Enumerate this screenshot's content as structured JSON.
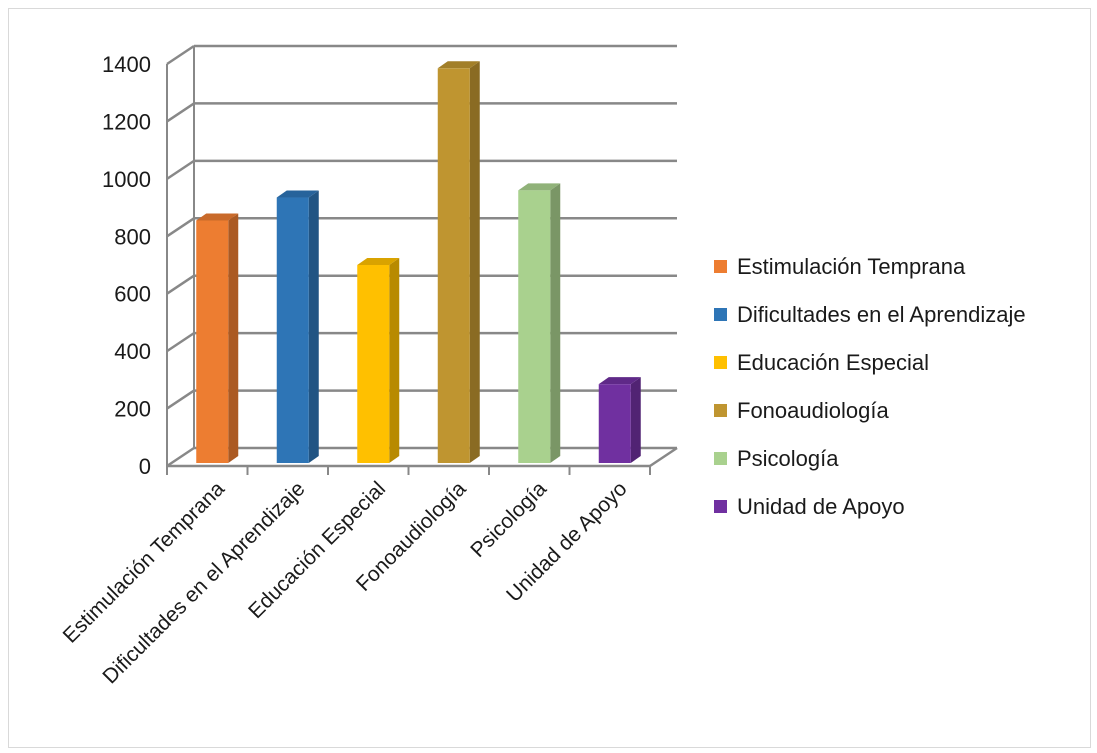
{
  "chart_data": {
    "type": "bar",
    "title": "",
    "xlabel": "",
    "ylabel": "",
    "categories": [
      "Estimulación Temprana",
      "Dificultades en el Aprendizaje",
      "Educación Especial",
      "Fonoaudiología",
      "Psicología",
      "Unidad de Apoyo"
    ],
    "values": [
      855,
      935,
      700,
      1385,
      960,
      285
    ],
    "colors": [
      "#ED7D31",
      "#2E75B6",
      "#FFC000",
      "#BF9530",
      "#A9D18E",
      "#7030A0"
    ],
    "ylim": [
      0,
      1400
    ],
    "yticks": [
      "0",
      "200",
      "400",
      "600",
      "800",
      "1000",
      "1200",
      "1400"
    ],
    "grid": true,
    "three_d": true,
    "legend": {
      "position": "right",
      "entries": [
        "Estimulación Temprana",
        "Dificultades en el Aprendizaje",
        "Educación Especial",
        "Fonoaudiología",
        "Psicología",
        "Unidad de Apoyo"
      ]
    }
  }
}
